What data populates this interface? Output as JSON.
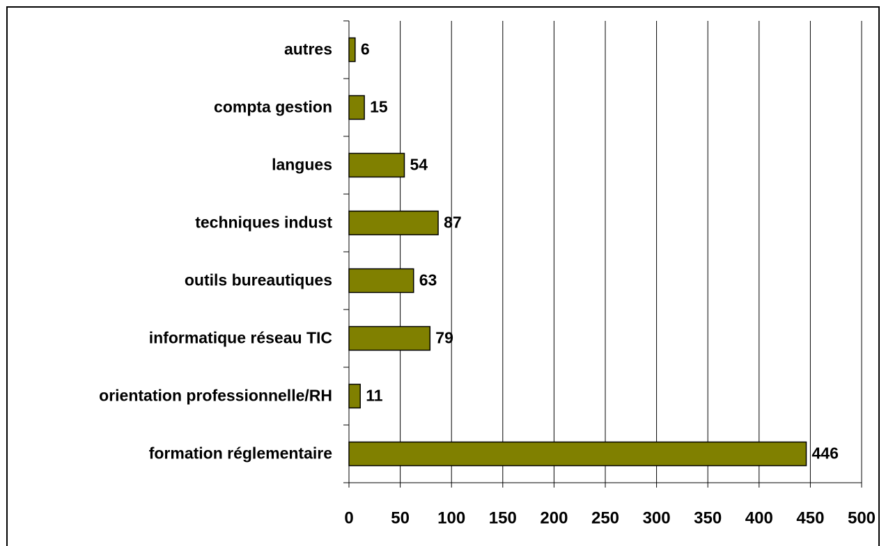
{
  "chart_data": {
    "type": "bar",
    "orientation": "horizontal",
    "categories": [
      "autres",
      "compta gestion",
      "langues",
      "techniques indust",
      "outils bureautiques",
      "informatique réseau TIC",
      "orientation professionnelle/RH",
      "formation réglementaire"
    ],
    "values": [
      6,
      15,
      54,
      87,
      63,
      79,
      11,
      446
    ],
    "color": "#808000",
    "xlim": [
      0,
      500
    ],
    "xticks": [
      0,
      50,
      100,
      150,
      200,
      250,
      300,
      350,
      400,
      450,
      500
    ],
    "grid": true,
    "data_labels": true
  }
}
